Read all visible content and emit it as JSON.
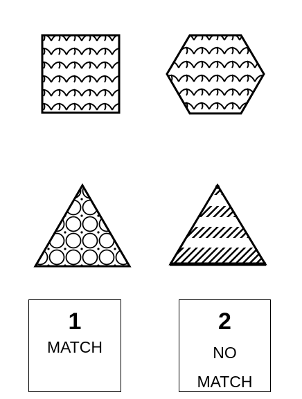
{
  "stimuli": {
    "top_left": {
      "shape": "square",
      "pattern": "scales"
    },
    "top_right": {
      "shape": "hexagon",
      "pattern": "scales"
    },
    "bottom_left": {
      "shape": "triangle",
      "pattern": "circles"
    },
    "bottom_right": {
      "shape": "triangle",
      "pattern": "diagonal-stripes"
    }
  },
  "responses": {
    "match": {
      "key": "1",
      "label": "MATCH"
    },
    "no_match": {
      "key": "2",
      "label_line1": "NO",
      "label_line2": "MATCH"
    }
  },
  "colors": {
    "background": "#ffffff",
    "ink": "#000000"
  }
}
